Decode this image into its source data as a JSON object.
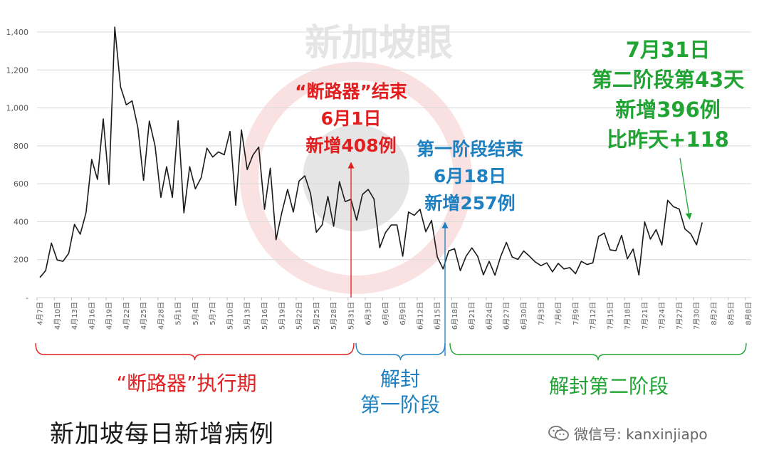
{
  "chart_data": {
    "type": "line",
    "watermark": "新加坡眼",
    "title": "新加坡每日新增病例",
    "ylim": [
      0,
      1400
    ],
    "yticks": [
      {
        "value": 0,
        "label": "-"
      },
      {
        "value": 200,
        "label": "200"
      },
      {
        "value": 400,
        "label": "400"
      },
      {
        "value": 600,
        "label": "600"
      },
      {
        "value": 800,
        "label": "800"
      },
      {
        "value": 1000,
        "label": "1,000"
      },
      {
        "value": 1200,
        "label": "1,200"
      },
      {
        "value": 1400,
        "label": "1,400"
      }
    ],
    "grid": "horizontal",
    "x_labels": [
      "4月7日",
      "4月10日",
      "4月13日",
      "4月16日",
      "4月19日",
      "4月22日",
      "4月25日",
      "4月28日",
      "5月1日",
      "5月4日",
      "5月7日",
      "5月10日",
      "5月13日",
      "5月16日",
      "5月19日",
      "5月22日",
      "5月25日",
      "5月28日",
      "5月31日",
      "6月3日",
      "6月6日",
      "6月9日",
      "6月12日",
      "6月15日",
      "6月18日",
      "6月21日",
      "6月24日",
      "6月27日",
      "6月30日",
      "7月3日",
      "7月6日",
      "7月9日",
      "7月12日",
      "7月15日",
      "7月18日",
      "7月21日",
      "7月24日",
      "7月27日",
      "7月30日",
      "8月2日",
      "8月5日",
      "8月8日"
    ],
    "x_total_days": 124,
    "series": [
      {
        "color": "#1a1a1a",
        "values": [
          106,
          142,
          287,
          198,
          191,
          233,
          386,
          334,
          447,
          728,
          623,
          942,
          596,
          1426,
          1111,
          1016,
          1037,
          897,
          618,
          931,
          799,
          528,
          690,
          528,
          932,
          447,
          690,
          573,
          632,
          788,
          741,
          768,
          753,
          876,
          486,
          884,
          675,
          752,
          793,
          465,
          682,
          305,
          448,
          570,
          451,
          614,
          642,
          548,
          344,
          383,
          533,
          376,
          611,
          506,
          518,
          408,
          544,
          570,
          520,
          263,
          343,
          383,
          383,
          218,
          451,
          434,
          465,
          347,
          407,
          214,
          151,
          247,
          257,
          142,
          218,
          262,
          218,
          120,
          191,
          118,
          216,
          291,
          214,
          201,
          246,
          218,
          188,
          168,
          183,
          136,
          180,
          151,
          158,
          126,
          191,
          174,
          183,
          322,
          340,
          252,
          247,
          328,
          204,
          256,
          119,
          399,
          308,
          358,
          277,
          513,
          479,
          467,
          361,
          336,
          278,
          396
        ]
      }
    ],
    "annotations": [
      {
        "color": "#e02020",
        "lines": [
          "“断路器”结束",
          "6月1日",
          "新增408例"
        ]
      },
      {
        "color": "#1e80c0",
        "lines": [
          "第一阶段结束",
          "6月18日",
          "新增257例"
        ]
      },
      {
        "color": "#21a434",
        "lines": [
          "7月31日",
          "第二阶段第43天",
          "新增396例",
          "比昨天+118"
        ]
      }
    ],
    "phases": [
      {
        "color": "#e02020",
        "lines": [
          "“断路器”执行期"
        ]
      },
      {
        "color": "#1e80c0",
        "lines": [
          "解封",
          "第一阶段"
        ]
      },
      {
        "color": "#21a434",
        "lines": [
          "解封第二阶段"
        ]
      }
    ]
  },
  "footer": {
    "wechat_icon": "wechat-icon",
    "wechat_text": "微信号: kanxinjiapo"
  }
}
